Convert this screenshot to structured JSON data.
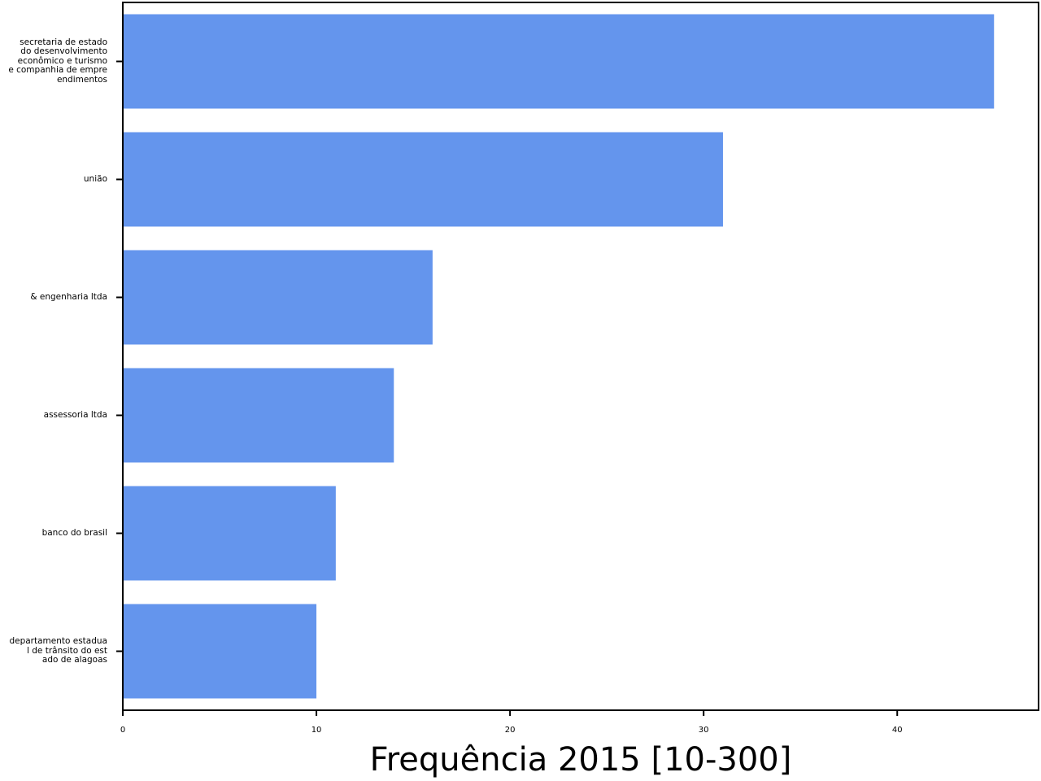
{
  "chart_data": {
    "type": "bar",
    "orientation": "horizontal",
    "categories": [
      "secretaria de estado\ndo desenvolvimento \neconômico e turismo \ne companhia de empre\nendimentos",
      "união",
      "& engenharia ltda",
      "assessoria ltda",
      "banco do brasil",
      "departamento estadua\nl de trânsito do est\nado de alagoas"
    ],
    "values": [
      45,
      31,
      16,
      14,
      11,
      10
    ],
    "xlabel": "Frequência 2015 [10-300]",
    "ylabel": "",
    "title": "",
    "xlim": [
      0,
      47.3
    ],
    "xticks": [
      0,
      10,
      20,
      30,
      40
    ],
    "bar_color": "#6495ED",
    "grid": false
  }
}
